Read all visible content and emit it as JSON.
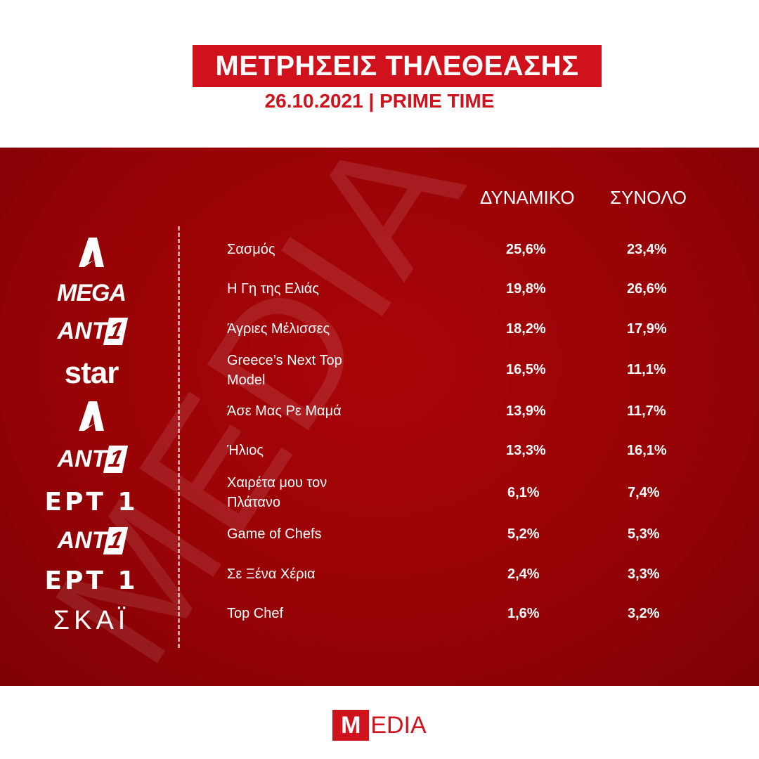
{
  "header": {
    "title": "ΜΕΤΡΗΣΕΙΣ ΤΗΛΕΘΕΑΣΗΣ",
    "subtitle": "26.10.2021 | PRIME TIME"
  },
  "table": {
    "headers": {
      "dynamiko": "ΔΥΝΑΜΙΚΟ",
      "synolo": "ΣΥΝΟΛΟ"
    },
    "rows": [
      {
        "channel": "alpha-logo",
        "show": "Σασμός",
        "dynamiko": "25,6%",
        "synolo": "23,4%"
      },
      {
        "channel": "mega-logo",
        "channel_text": "MEGA",
        "show": "Η Γη της Ελιάς",
        "dynamiko": "19,8%",
        "synolo": "26,6%"
      },
      {
        "channel": "ant1-logo",
        "channel_text": "ANT1",
        "show": "Άγριες Μέλισσες",
        "dynamiko": "18,2%",
        "synolo": "17,9%"
      },
      {
        "channel": "star-logo",
        "channel_text": "star",
        "show": "Greece’s Next Top Model",
        "dynamiko": "16,5%",
        "synolo": "11,1%"
      },
      {
        "channel": "alpha-logo",
        "show": "Άσε Μας Ρε Μαμά",
        "dynamiko": "13,9%",
        "synolo": "11,7%"
      },
      {
        "channel": "ant1-logo",
        "channel_text": "ANT1",
        "show": "Ήλιος",
        "dynamiko": "13,3%",
        "synolo": "16,1%"
      },
      {
        "channel": "ert1-logo",
        "channel_text": "ΕΡΤ 1",
        "show": "Χαιρέτα μου τον Πλάτανο",
        "dynamiko": "6,1%",
        "synolo": "7,4%"
      },
      {
        "channel": "ant1-logo",
        "channel_text": "ANT1",
        "show": "Game of Chefs",
        "dynamiko": "5,2%",
        "synolo": "5,3%"
      },
      {
        "channel": "ert1-logo",
        "channel_text": "ΕΡΤ 1",
        "show": "Σε Ξένα Χέρια",
        "dynamiko": "2,4%",
        "synolo": "3,3%"
      },
      {
        "channel": "skai-logo",
        "channel_text": "ΣΚΑΪ",
        "show": "Top Chef",
        "dynamiko": "1,6%",
        "synolo": "3,2%"
      }
    ]
  },
  "watermark": "MEDIA",
  "footer": {
    "logo_m": "M",
    "logo_rest": "EDIA"
  },
  "colors": {
    "brand_red": "#d0121c",
    "panel_red": "#980306"
  }
}
